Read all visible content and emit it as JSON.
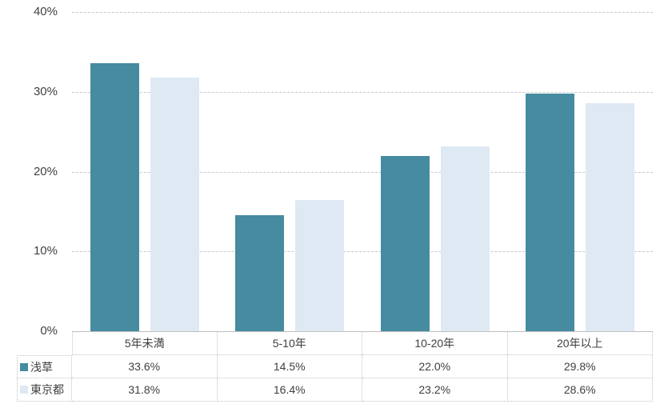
{
  "chart_data": {
    "type": "bar",
    "title": "",
    "categories": [
      "5年未満",
      "5-10年",
      "10-20年",
      "20年以上"
    ],
    "series": [
      {
        "name": "浅草",
        "color": "#468ba0",
        "values": [
          33.6,
          14.5,
          22.0,
          29.8
        ]
      },
      {
        "name": "東京都",
        "color": "#dee9f4",
        "values": [
          31.8,
          16.4,
          23.2,
          28.6
        ]
      }
    ],
    "value_label_format": "percent-one-decimal",
    "y_axis": {
      "min": 0,
      "max": 40,
      "tick_values": [
        0,
        10,
        20,
        30,
        40
      ],
      "tick_labels": [
        "0%",
        "10%",
        "20%",
        "30%",
        "40%"
      ]
    },
    "grid": "horizontal-dashed",
    "legend_position": "data-table-left",
    "colors": {
      "grid_line": "#c9c9c9",
      "table_border": "#c2c2c2",
      "axis_line": "#bfbfbf",
      "text": "#404040",
      "background": "#ffffff"
    }
  }
}
